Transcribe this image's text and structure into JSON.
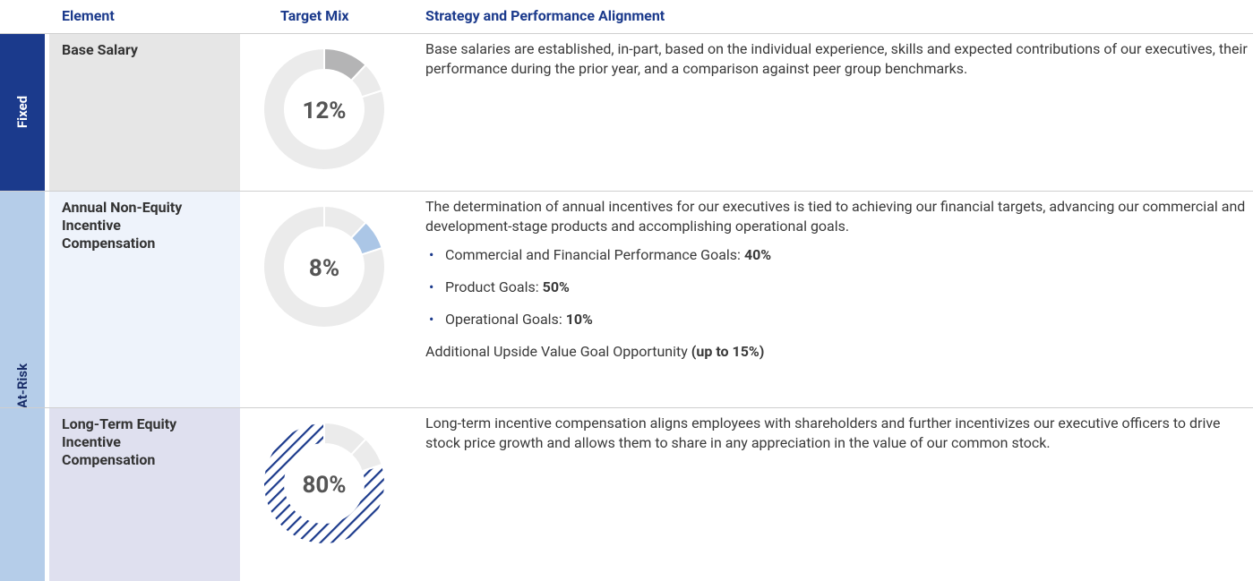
{
  "header": {
    "columns": [
      "Element",
      "Target Mix",
      "Strategy and Performance Alignment"
    ]
  },
  "groups": [
    {
      "label": "Fixed"
    },
    {
      "label": "At-Risk"
    }
  ],
  "rows": [
    {
      "element": "Base Salary",
      "mix": {
        "value": 12,
        "label": "12%"
      },
      "paragraphs": [
        "Base salaries are established, in-part, based on the individual experience, skills and expected contributions of our executives, their performance during the prior year, and a comparison against peer group benchmarks."
      ]
    },
    {
      "element": "Annual Non-Equity Incentive Compensation",
      "mix": {
        "value": 8,
        "label": "8%"
      },
      "paragraphs": [
        "The determination of annual incentives for our executives is tied to achieving our financial targets, advancing our commercial and development-stage products and accomplishing operational goals."
      ],
      "bullets": [
        {
          "text": "Commercial and Financial Performance Goals:",
          "bold": "40%"
        },
        {
          "text": "Product Goals:",
          "bold": "50%"
        },
        {
          "text": "Operational Goals:",
          "bold": "10%"
        }
      ],
      "note": {
        "text": "Additional Upside Value Goal Opportunity",
        "bold": "(up to 15%)"
      }
    },
    {
      "element": "Long-Term Equity Incentive Compensation",
      "mix": {
        "value": 80,
        "label": "80%"
      },
      "paragraphs": [
        "Long-term incentive compensation aligns employees with shareholders and further incentivizes our executive officers to drive stock price growth and allows them to share in any appreciation in the value of our common stock."
      ]
    }
  ]
}
